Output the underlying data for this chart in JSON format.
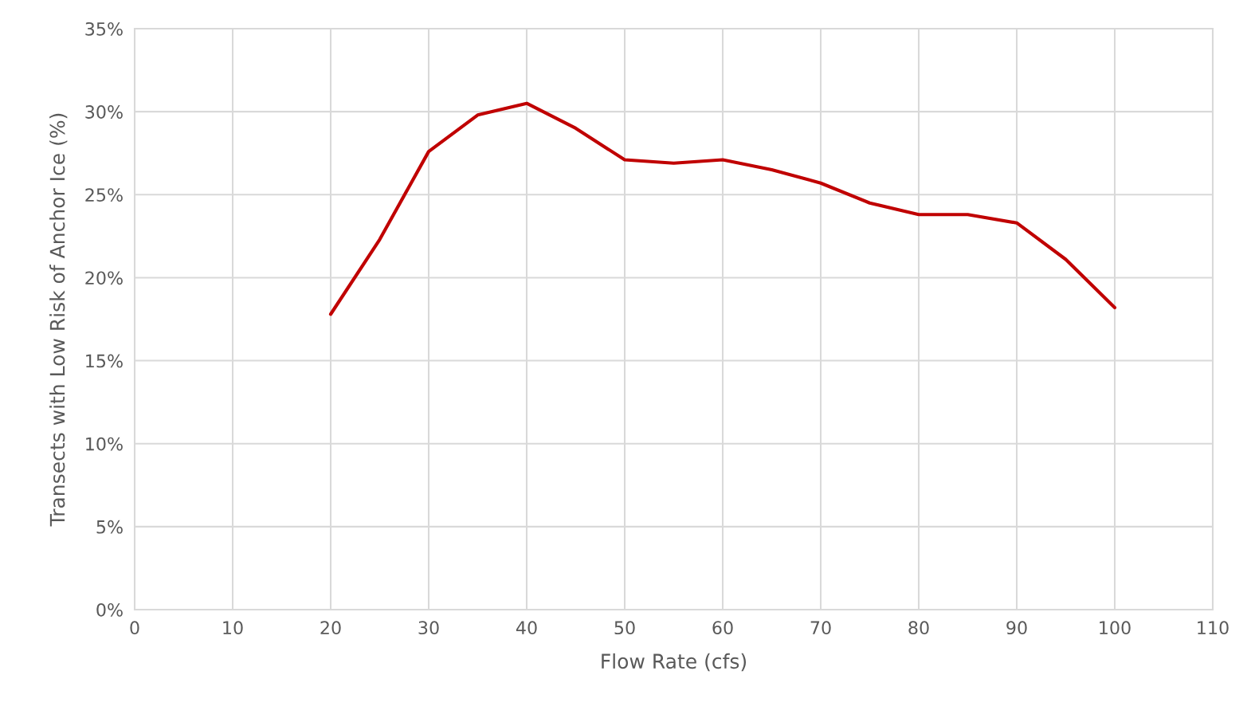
{
  "chart_data": {
    "type": "line",
    "xlabel": "Flow Rate (cfs)",
    "ylabel": "Transects with Low Risk of Anchor Ice (%)",
    "x": [
      20,
      25,
      30,
      35,
      40,
      45,
      50,
      55,
      60,
      65,
      70,
      75,
      80,
      85,
      90,
      95,
      100
    ],
    "series": [
      {
        "color": "#c00000",
        "values": [
          17.8,
          22.3,
          27.6,
          29.8,
          30.5,
          29.0,
          27.1,
          26.9,
          27.1,
          26.5,
          25.7,
          24.5,
          23.8,
          23.8,
          23.3,
          21.1,
          18.2
        ]
      }
    ],
    "xlim": [
      0,
      110
    ],
    "xticks": [
      0,
      10,
      20,
      30,
      40,
      50,
      60,
      70,
      80,
      90,
      100,
      110
    ],
    "ylim": [
      0,
      35
    ],
    "yticks": [
      {
        "value": 0,
        "label": "0%"
      },
      {
        "value": 5,
        "label": "5%"
      },
      {
        "value": 10,
        "label": "10%"
      },
      {
        "value": 15,
        "label": "15%"
      },
      {
        "value": 20,
        "label": "20%"
      },
      {
        "value": 25,
        "label": "25%"
      },
      {
        "value": 30,
        "label": "30%"
      },
      {
        "value": 35,
        "label": "35%"
      }
    ],
    "grid": true,
    "marker": "none",
    "line_style": "solid",
    "legend": false
  }
}
